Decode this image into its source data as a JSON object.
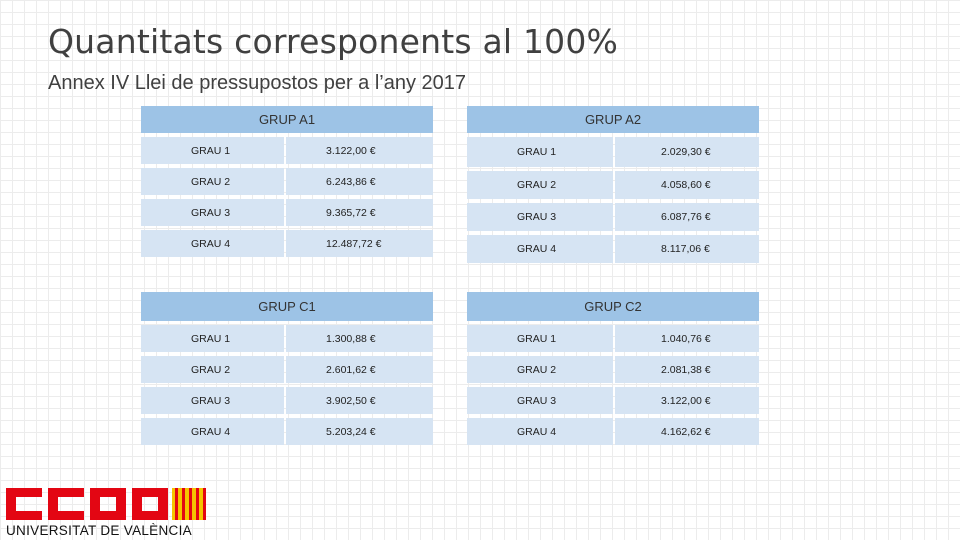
{
  "slide": {
    "title": "Quantitats corresponents al 100%",
    "subtitle": "Annex IV Llei de pressupostos per a l’any 2017"
  },
  "groups": [
    {
      "name": "GRUP A1",
      "rows": [
        {
          "grade": "GRAU 1",
          "amount": "3.122,00 €"
        },
        {
          "grade": "GRAU 2",
          "amount": "6.243,86 €"
        },
        {
          "grade": "GRAU 3",
          "amount": "9.365,72 €"
        },
        {
          "grade": "GRAU 4",
          "amount": "12.487,72 €"
        }
      ]
    },
    {
      "name": "GRUP A2",
      "rows": [
        {
          "grade": "GRAU 1",
          "amount": "2.029,30 €"
        },
        {
          "grade": "GRAU 2",
          "amount": "4.058,60 €"
        },
        {
          "grade": "GRAU 3",
          "amount": "6.087,76 €"
        },
        {
          "grade": "GRAU 4",
          "amount": "8.117,06 €"
        }
      ]
    },
    {
      "name": "GRUP C1",
      "rows": [
        {
          "grade": "GRAU 1",
          "amount": "1.300,88 €"
        },
        {
          "grade": "GRAU 2",
          "amount": "2.601,62 €"
        },
        {
          "grade": "GRAU 3",
          "amount": "3.902,50 €"
        },
        {
          "grade": "GRAU 4",
          "amount": "5.203,24 €"
        }
      ]
    },
    {
      "name": "GRUP C2",
      "rows": [
        {
          "grade": "GRAU 1",
          "amount": "1.040,76 €"
        },
        {
          "grade": "GRAU 2",
          "amount": "2.081,38 €"
        },
        {
          "grade": "GRAU 3",
          "amount": "3.122,00 €"
        },
        {
          "grade": "GRAU 4",
          "amount": "4.162,62 €"
        }
      ]
    }
  ],
  "logo": {
    "letters": "CCOO",
    "text": "UNIVERSITAT DE VALÈNCIA",
    "color": "#e30613",
    "stripe_color": "#f5c400"
  },
  "colors": {
    "header_fill": "#9dc3e6",
    "cell_fill": "#d6e4f3"
  }
}
